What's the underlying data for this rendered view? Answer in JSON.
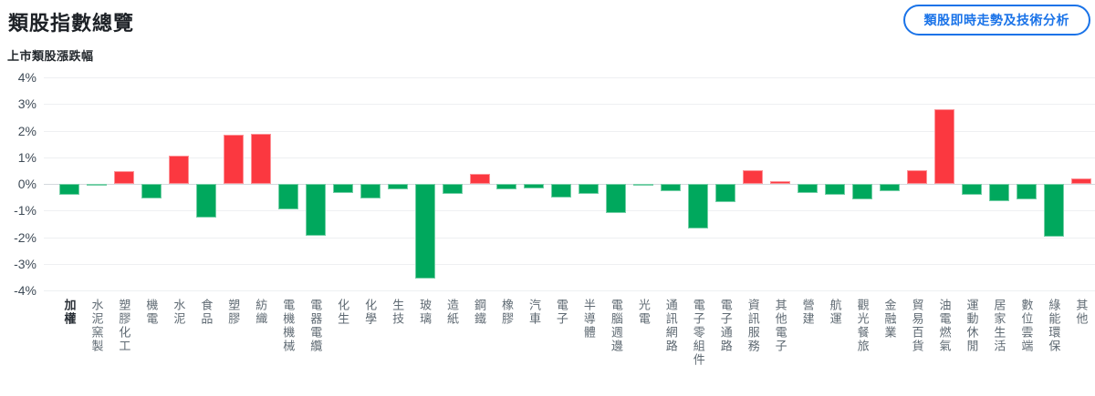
{
  "header": {
    "title": "類股指數總覽",
    "action_button": "類股即時走勢及技術分析"
  },
  "colors": {
    "up": "#fb3840",
    "down": "#00a85d",
    "accent": "#1a73e8"
  },
  "chart_data": {
    "type": "bar",
    "title": "上市類股漲跌幅",
    "unit": "%",
    "ylim": [
      -4,
      4
    ],
    "ytick_step": 1,
    "ytick_labels": [
      "4%",
      "3%",
      "2%",
      "1%",
      "0%",
      "-1%",
      "-2%",
      "-3%",
      "-4%"
    ],
    "grid": true,
    "legend": false,
    "color_rule": "positive bars red (up), negative bars green (down)",
    "emphasized_category": "加權",
    "categories": [
      "加權",
      "水泥窯製",
      "塑膠化工",
      "機電",
      "水泥",
      "食品",
      "塑膠",
      "紡織",
      "電機機械",
      "電器電纜",
      "化生",
      "化學",
      "生技",
      "玻璃",
      "造紙",
      "鋼鐵",
      "橡膠",
      "汽車",
      "電子",
      "半導體",
      "電腦週邊",
      "光電",
      "通訊網路",
      "電子零組件",
      "電子通路",
      "資訊服務",
      "其他電子",
      "營建",
      "航運",
      "觀光餐旅",
      "金融業",
      "貿易百貨",
      "油電燃氣",
      "運動休閒",
      "居家生活",
      "數位雲端",
      "綠能環保",
      "其他"
    ],
    "values": [
      -0.42,
      -0.08,
      0.47,
      -0.56,
      1.07,
      -1.27,
      1.85,
      1.87,
      -0.97,
      -1.95,
      -0.33,
      -0.55,
      -0.19,
      -3.57,
      -0.36,
      0.39,
      -0.22,
      -0.16,
      -0.51,
      -0.37,
      -1.1,
      -0.08,
      -0.28,
      -1.66,
      -0.7,
      0.53,
      0.11,
      -0.34,
      -0.4,
      -0.57,
      -0.26,
      0.51,
      2.82,
      -0.4,
      -0.65,
      -0.57,
      -1.97,
      0.2
    ]
  }
}
